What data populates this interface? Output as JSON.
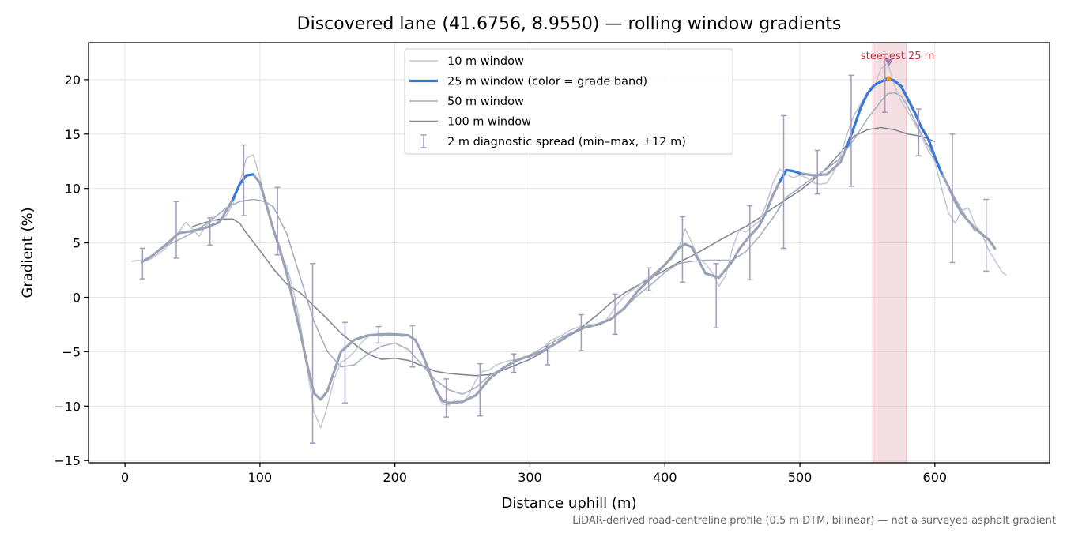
{
  "title": "Discovered lane (41.6756, 8.9550) — rolling window gradients",
  "footnote": "LiDAR-derived road-centreline profile (0.5 m DTM, bilinear) — not a surveyed asphalt gradient",
  "chart_data": {
    "type": "line",
    "title": "Discovered lane (41.6756, 8.9550) — rolling window gradients",
    "xlabel": "Distance uphill (m)",
    "ylabel": "Gradient (%)",
    "xlim": [
      -27,
      685
    ],
    "ylim": [
      -15.2,
      23.4
    ],
    "xticks": [
      0,
      100,
      200,
      300,
      400,
      500,
      600
    ],
    "yticks": [
      -15,
      -10,
      -5,
      0,
      5,
      10,
      15,
      20
    ],
    "grid": true,
    "legend_position": "top-center",
    "colors": {
      "win10": "#c4c7d1",
      "win25": "#9aa3b5",
      "win25_band": "#3a78d6",
      "win50": "#a6aec0",
      "win100": "#838895",
      "errorbar": "#a09cc4",
      "highlight": "#e8aeb6",
      "highlight_text": "#c0303d",
      "peak_marker": "#f0901a"
    },
    "highlight": {
      "x_start": 554,
      "x_end": 579,
      "label": "steepest 25 m"
    },
    "peak": {
      "x": 566,
      "y": 20.1
    },
    "series": [
      {
        "name": "10 m window",
        "x": [
          5,
          10,
          15,
          20,
          25,
          30,
          35,
          40,
          45,
          50,
          55,
          60,
          65,
          70,
          75,
          80,
          85,
          90,
          95,
          100,
          105,
          110,
          115,
          120,
          125,
          130,
          135,
          140,
          145,
          150,
          155,
          160,
          165,
          170,
          175,
          180,
          185,
          190,
          195,
          200,
          205,
          210,
          215,
          220,
          225,
          230,
          235,
          240,
          245,
          250,
          255,
          260,
          265,
          270,
          275,
          280,
          285,
          290,
          295,
          300,
          305,
          310,
          315,
          320,
          325,
          330,
          335,
          340,
          345,
          350,
          355,
          360,
          365,
          370,
          375,
          380,
          385,
          390,
          395,
          400,
          405,
          410,
          415,
          420,
          425,
          430,
          435,
          440,
          445,
          450,
          455,
          460,
          465,
          470,
          475,
          480,
          485,
          490,
          495,
          500,
          505,
          510,
          515,
          520,
          525,
          530,
          535,
          540,
          545,
          550,
          555,
          560,
          565,
          570,
          575,
          580,
          585,
          590,
          595,
          600,
          605,
          610,
          615,
          620,
          625,
          630,
          635,
          640,
          645,
          650,
          653
        ],
        "y": [
          3.3,
          3.4,
          3.3,
          3.6,
          4.0,
          4.5,
          5.2,
          6.0,
          6.9,
          6.3,
          5.6,
          6.6,
          7.1,
          7.0,
          7.5,
          8.6,
          10.5,
          12.8,
          13.1,
          11.0,
          8.5,
          6.2,
          4.0,
          2.8,
          0.5,
          -2.5,
          -6.5,
          -10.5,
          -12.0,
          -10.0,
          -7.5,
          -6.0,
          -5.6,
          -5.0,
          -4.2,
          -3.6,
          -3.4,
          -3.6,
          -3.3,
          -3.4,
          -3.6,
          -3.5,
          -4.0,
          -5.0,
          -6.7,
          -8.5,
          -9.8,
          -9.9,
          -9.4,
          -9.7,
          -8.9,
          -7.6,
          -6.8,
          -6.7,
          -6.2,
          -6.0,
          -5.8,
          -5.8,
          -5.5,
          -5.4,
          -5.0,
          -4.6,
          -4.0,
          -3.7,
          -3.4,
          -3.0,
          -2.8,
          -2.5,
          -2.5,
          -2.6,
          -2.3,
          -1.5,
          -0.6,
          0.1,
          0.6,
          1.0,
          1.6,
          2.0,
          2.5,
          3.0,
          3.5,
          4.5,
          6.3,
          5.0,
          3.6,
          3.1,
          2.3,
          1.0,
          2.0,
          4.5,
          6.2,
          6.0,
          6.5,
          7.0,
          8.5,
          10.5,
          11.8,
          11.3,
          11.0,
          11.2,
          11.0,
          10.5,
          10.4,
          10.5,
          11.5,
          13.0,
          15.0,
          16.7,
          17.8,
          18.8,
          19.2,
          21.0,
          21.5,
          19.5,
          18.0,
          17.0,
          16.0,
          14.8,
          13.5,
          12.5,
          10.0,
          7.8,
          6.8,
          8.0,
          8.2,
          6.6,
          5.8,
          4.3,
          3.3,
          2.3,
          2.0
        ]
      },
      {
        "name": "25 m window (color = grade band)",
        "x": [
          12,
          20,
          30,
          40,
          50,
          60,
          70,
          80,
          85,
          90,
          95,
          100,
          105,
          110,
          115,
          120,
          125,
          130,
          135,
          140,
          145,
          150,
          155,
          160,
          170,
          180,
          190,
          200,
          210,
          215,
          220,
          225,
          230,
          235,
          240,
          250,
          260,
          270,
          280,
          290,
          300,
          310,
          320,
          330,
          340,
          350,
          360,
          370,
          380,
          390,
          400,
          405,
          410,
          415,
          420,
          430,
          440,
          450,
          455,
          460,
          470,
          475,
          480,
          485,
          490,
          495,
          500,
          510,
          520,
          530,
          535,
          540,
          545,
          550,
          555,
          560,
          565,
          570,
          575,
          580,
          585,
          590,
          595,
          600,
          605,
          610,
          615,
          620,
          630,
          640,
          645
        ],
        "y": [
          3.2,
          3.8,
          4.8,
          5.9,
          6.1,
          6.4,
          6.9,
          9.0,
          10.4,
          11.2,
          11.3,
          10.5,
          8.4,
          6.2,
          4.3,
          2.1,
          -0.6,
          -3.3,
          -6.2,
          -8.8,
          -9.4,
          -8.6,
          -6.8,
          -5.0,
          -3.9,
          -3.5,
          -3.4,
          -3.4,
          -3.5,
          -3.9,
          -5.1,
          -6.7,
          -8.4,
          -9.5,
          -9.7,
          -9.6,
          -9.0,
          -7.5,
          -6.5,
          -5.8,
          -5.4,
          -4.9,
          -4.2,
          -3.4,
          -2.8,
          -2.5,
          -2.0,
          -1.0,
          0.6,
          1.8,
          3.0,
          3.7,
          4.5,
          4.9,
          4.6,
          2.2,
          1.8,
          3.3,
          4.4,
          5.2,
          6.6,
          7.8,
          9.4,
          10.6,
          11.7,
          11.6,
          11.4,
          11.2,
          11.3,
          12.4,
          13.9,
          15.6,
          17.4,
          18.7,
          19.5,
          19.8,
          20.1,
          19.9,
          19.4,
          18.2,
          17.0,
          15.6,
          14.6,
          12.9,
          11.4,
          10.2,
          8.8,
          7.7,
          6.3,
          5.3,
          4.4
        ],
        "band_segments": [
          [
            80,
            97
          ],
          [
            485,
            505
          ],
          [
            535,
            607
          ]
        ]
      },
      {
        "name": "50 m window",
        "x": [
          25,
          35,
          45,
          55,
          65,
          75,
          85,
          95,
          100,
          105,
          110,
          120,
          130,
          140,
          150,
          160,
          170,
          180,
          190,
          200,
          210,
          220,
          230,
          240,
          250,
          260,
          270,
          280,
          290,
          300,
          310,
          320,
          330,
          340,
          350,
          360,
          370,
          380,
          390,
          400,
          410,
          420,
          430,
          440,
          450,
          460,
          470,
          480,
          490,
          500,
          510,
          520,
          530,
          540,
          550,
          560,
          565,
          570,
          575,
          580,
          590,
          600,
          610,
          620,
          630
        ],
        "y": [
          4.4,
          5.0,
          5.6,
          6.3,
          7.2,
          8.2,
          8.8,
          9.0,
          8.9,
          8.7,
          8.3,
          5.8,
          1.8,
          -2.2,
          -5.0,
          -6.4,
          -6.2,
          -5.2,
          -4.5,
          -4.2,
          -4.8,
          -6.2,
          -7.6,
          -8.5,
          -8.9,
          -8.3,
          -7.2,
          -6.5,
          -5.9,
          -5.3,
          -4.6,
          -3.9,
          -3.3,
          -2.8,
          -2.5,
          -2.0,
          -1.0,
          0.2,
          1.2,
          2.3,
          3.1,
          3.3,
          3.4,
          3.4,
          3.4,
          4.2,
          5.6,
          7.3,
          9.2,
          10.1,
          11.0,
          11.8,
          12.8,
          14.5,
          16.4,
          18.0,
          18.7,
          18.8,
          18.5,
          17.5,
          15.0,
          12.8,
          10.2,
          8.0,
          6.0
        ]
      },
      {
        "name": "100 m window",
        "x": [
          50,
          60,
          70,
          80,
          85,
          90,
          100,
          110,
          120,
          130,
          140,
          150,
          160,
          170,
          180,
          190,
          200,
          210,
          220,
          230,
          240,
          250,
          260,
          270,
          280,
          290,
          300,
          310,
          320,
          330,
          340,
          350,
          360,
          370,
          380,
          390,
          400,
          410,
          420,
          430,
          440,
          450,
          460,
          470,
          480,
          490,
          500,
          510,
          520,
          530,
          540,
          550,
          560,
          570,
          580,
          590,
          600
        ],
        "y": [
          6.5,
          6.9,
          7.2,
          7.2,
          6.8,
          5.9,
          4.3,
          2.6,
          1.2,
          0.4,
          -0.8,
          -2.0,
          -3.3,
          -4.3,
          -5.2,
          -5.7,
          -5.6,
          -5.8,
          -6.3,
          -6.8,
          -7.0,
          -7.1,
          -7.2,
          -7.1,
          -6.7,
          -6.2,
          -5.7,
          -5.0,
          -4.2,
          -3.4,
          -2.6,
          -1.6,
          -0.5,
          0.4,
          1.1,
          1.8,
          2.5,
          3.2,
          3.8,
          4.5,
          5.2,
          5.9,
          6.5,
          7.3,
          8.2,
          9.0,
          9.8,
          10.8,
          11.9,
          13.3,
          14.8,
          15.4,
          15.6,
          15.4,
          15.0,
          14.8,
          14.3
        ]
      }
    ],
    "errorbars": {
      "name": "2 m diagnostic spread (min–max, ±12 m)",
      "x": [
        13,
        38,
        63,
        88,
        113,
        139,
        163,
        188,
        213,
        238,
        263,
        288,
        313,
        338,
        363,
        388,
        413,
        438,
        463,
        488,
        513,
        538,
        563,
        588,
        613,
        638
      ],
      "low": [
        1.7,
        3.6,
        4.8,
        7.5,
        3.9,
        -13.4,
        -9.7,
        -4.2,
        -6.4,
        -11.0,
        -10.9,
        -6.9,
        -6.2,
        -4.9,
        -3.4,
        0.6,
        1.4,
        -2.8,
        1.6,
        4.5,
        9.5,
        10.2,
        17.0,
        13.0,
        3.2,
        2.4
      ],
      "high": [
        4.5,
        8.8,
        7.3,
        14.0,
        10.1,
        3.1,
        -2.3,
        -2.7,
        -2.6,
        -7.5,
        -6.1,
        -5.2,
        -4.5,
        -1.6,
        0.3,
        2.7,
        7.4,
        3.1,
        8.4,
        16.7,
        13.5,
        20.4,
        22.3,
        17.3,
        15.0,
        9.0
      ]
    }
  }
}
